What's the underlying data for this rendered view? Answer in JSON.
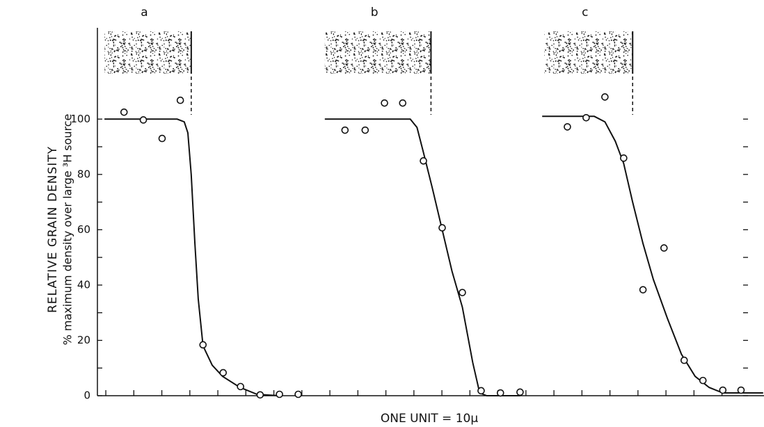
{
  "chart_data": {
    "type": "scatter",
    "y_label": "RELATIVE GRAIN DENSITY",
    "y_sublabel": "% maximum density over large ³H source",
    "x_label": "ONE UNIT = 10µ",
    "xlim": [
      -0.3,
      23.5
    ],
    "xticks": [
      0,
      1,
      2,
      3,
      4,
      5,
      6,
      7,
      8,
      9,
      10,
      11,
      12,
      13,
      14,
      15,
      16,
      17,
      18,
      19,
      20,
      21,
      22
    ],
    "ylim": [
      0,
      133
    ],
    "yticks": [
      0,
      20,
      40,
      60,
      80,
      100
    ],
    "yminorticks": [
      10,
      30,
      50,
      70,
      90
    ],
    "color": "#111111",
    "panels": [
      {
        "label": "a",
        "x": [
          0.65,
          1.34,
          2.01,
          2.66,
          3.47,
          4.19,
          4.81,
          5.51,
          6.2,
          6.87
        ],
        "values": [
          102.5,
          99.7,
          93,
          106.8,
          18.4,
          8.3,
          3.3,
          0.3,
          0.5,
          0.5
        ],
        "curve_x": [
          -0.05,
          2.55,
          2.8,
          2.93,
          3.05,
          3.18,
          3.3,
          3.47,
          3.8,
          4.17,
          4.79,
          5.4,
          6.2
        ],
        "curve_y": [
          100,
          100,
          99,
          95,
          80,
          55,
          35,
          18,
          11,
          7,
          3,
          0.5,
          0
        ],
        "source": [
          -0.05,
          3.05
        ],
        "boundary": 3.05
      },
      {
        "label": "b",
        "x": [
          8.54,
          9.26,
          9.95,
          10.6,
          11.34,
          12.01,
          12.73,
          13.4,
          14.09,
          14.79
        ],
        "values": [
          96,
          96,
          105.8,
          105.8,
          84.9,
          60.7,
          37.3,
          1.8,
          1,
          1.3
        ],
        "curve_x": [
          7.82,
          10.87,
          11.11,
          11.34,
          11.66,
          12.01,
          12.36,
          12.73,
          13.1,
          13.35,
          13.6,
          14.8
        ],
        "curve_y": [
          100,
          100,
          97,
          88,
          75,
          60,
          45,
          32,
          12,
          1,
          0,
          0
        ],
        "source": [
          7.82,
          11.61
        ],
        "boundary": 11.61
      },
      {
        "label": "c",
        "x": [
          16.48,
          17.15,
          17.82,
          18.49,
          19.18,
          19.93,
          20.65,
          21.32,
          22.03,
          22.68
        ],
        "values": [
          97.2,
          100.5,
          108,
          85.9,
          38.3,
          53.4,
          12.8,
          5.5,
          2,
          2
        ],
        "curve_x": [
          15.58,
          17.44,
          17.82,
          18.19,
          18.49,
          18.81,
          19.18,
          19.55,
          20.05,
          20.55,
          21.04,
          21.54,
          22.03,
          23.47
        ],
        "curve_y": [
          101,
          101,
          99,
          92,
          84,
          70,
          55,
          42,
          28,
          15,
          7,
          3,
          1,
          1
        ],
        "source": [
          15.66,
          18.81
        ],
        "boundary": 18.81
      }
    ]
  }
}
